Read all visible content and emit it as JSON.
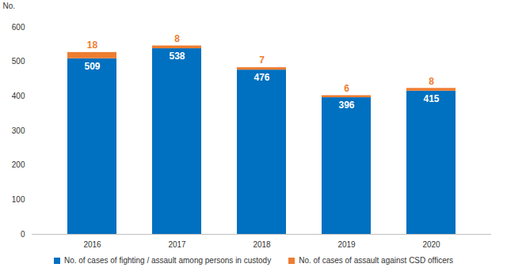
{
  "chart_data": {
    "type": "bar",
    "y_label": "No.",
    "categories": [
      "2016",
      "2017",
      "2018",
      "2019",
      "2020"
    ],
    "series": [
      {
        "name": "No. of cases of fighting / assault among persons in custody",
        "color": "#0070c0",
        "values": [
          509,
          538,
          476,
          396,
          415
        ]
      },
      {
        "name": "No. of cases of assault against CSD officers",
        "color": "#ed7d31",
        "values": [
          18,
          8,
          7,
          6,
          8
        ]
      }
    ],
    "ylim": [
      0,
      600
    ],
    "yticks": [
      0,
      100,
      200,
      300,
      400,
      500,
      600
    ],
    "stacked": true,
    "data_labels": true,
    "grid": false,
    "legend": "bottom"
  }
}
